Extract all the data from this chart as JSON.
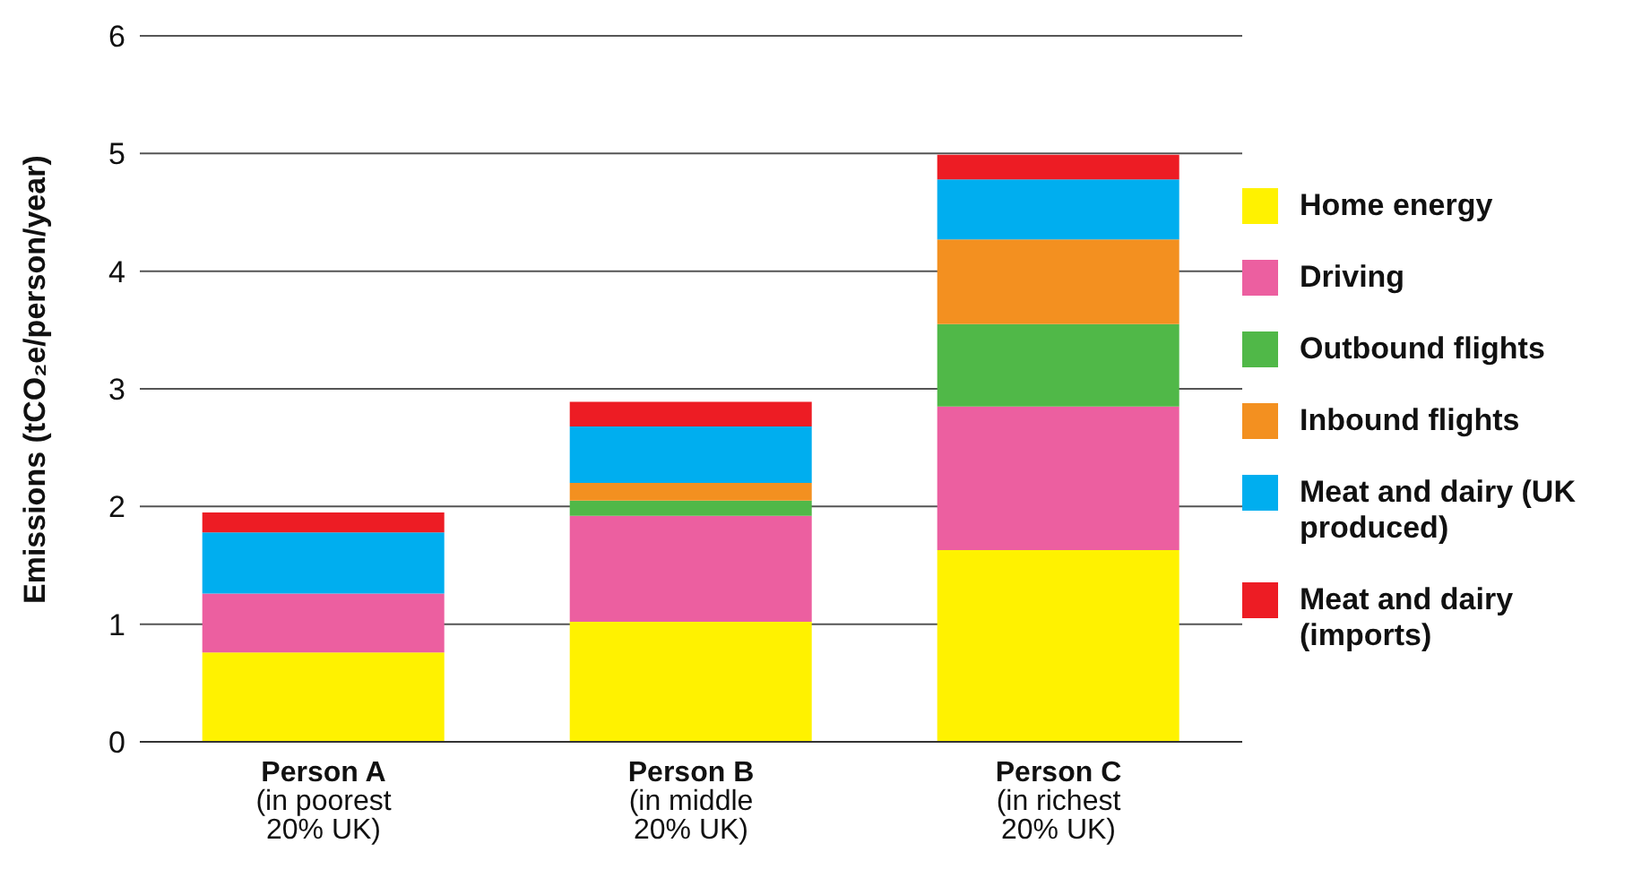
{
  "chart_data": {
    "type": "bar",
    "stacked": true,
    "ylabel": "Emissions (tCO₂e/person/year)",
    "categories": [
      "Person A\n(in poorest\n20% UK)",
      "Person B\n(in middle\n20% UK)",
      "Person C\n(in richest\n20% UK)"
    ],
    "series": [
      {
        "name": "Home energy",
        "color": "#fff200",
        "values": [
          0.76,
          1.02,
          1.63
        ]
      },
      {
        "name": "Driving",
        "color": "#ec5fa0",
        "values": [
          0.5,
          0.9,
          1.22
        ]
      },
      {
        "name": "Outbound flights",
        "color": "#50b848",
        "values": [
          0,
          0.13,
          0.7
        ]
      },
      {
        "name": "Inbound flights",
        "color": "#f39020",
        "values": [
          0,
          0.15,
          0.72
        ]
      },
      {
        "name": "Meat and dairy (UK produced)",
        "color": "#00aeef",
        "values": [
          0.52,
          0.48,
          0.51
        ]
      },
      {
        "name": "Meat and dairy (imports)",
        "color": "#ed1c24",
        "values": [
          0.17,
          0.21,
          0.21
        ]
      }
    ],
    "ylim": [
      0,
      6
    ],
    "yticks": [
      0,
      1,
      2,
      3,
      4,
      5,
      6
    ],
    "grid": "y",
    "legend": "right"
  }
}
